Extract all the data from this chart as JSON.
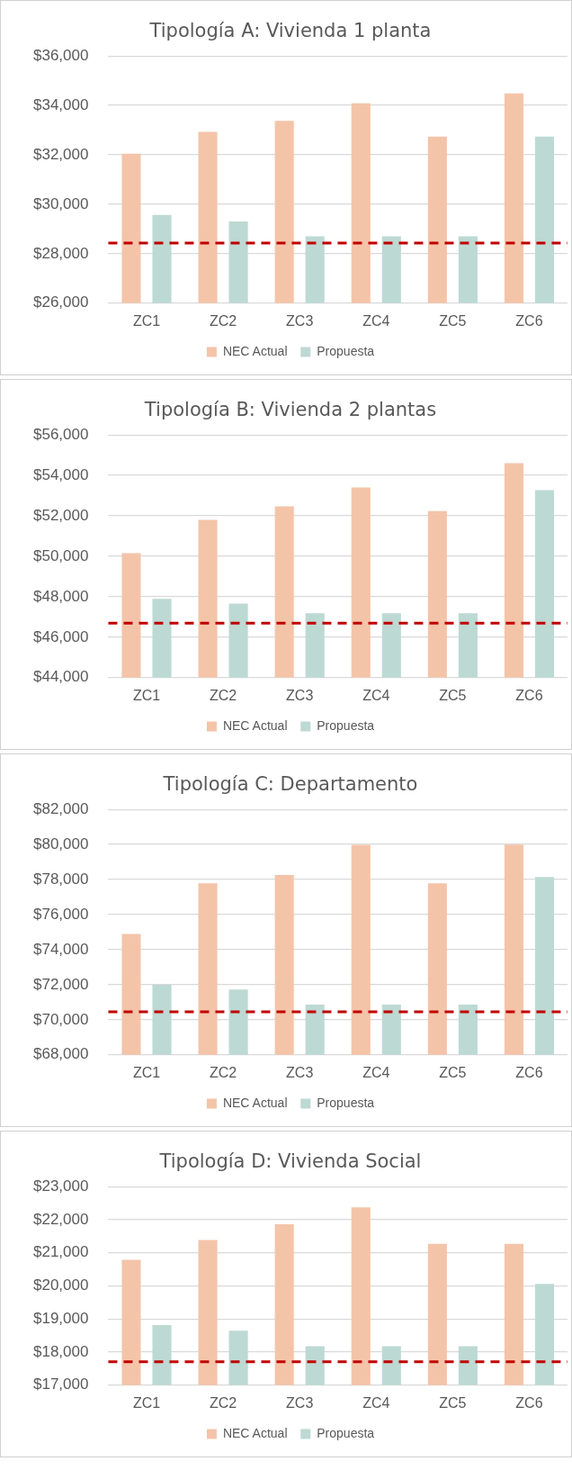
{
  "chart_data": [
    {
      "type": "bar",
      "title": "Tipología A: Vivienda 1 planta",
      "categories": [
        "ZC1",
        "ZC2",
        "ZC3",
        "ZC4",
        "ZC5",
        "ZC6"
      ],
      "series": [
        {
          "name": "NEC Actual",
          "color": "#f4c4a9",
          "values": [
            32050,
            32930,
            33380,
            34090,
            32740,
            34490
          ]
        },
        {
          "name": "Propuesta",
          "color": "#bdd9d3",
          "values": [
            29570,
            29310,
            28710,
            28710,
            28710,
            32740
          ]
        }
      ],
      "ylim": [
        26000,
        36000
      ],
      "yticks": [
        {
          "value": 26000,
          "label": "$26,000"
        },
        {
          "value": 28000,
          "label": "$28,000"
        },
        {
          "value": 30000,
          "label": "$30,000"
        },
        {
          "value": 32000,
          "label": "$32,000"
        },
        {
          "value": 34000,
          "label": "$34,000"
        },
        {
          "value": 36000,
          "label": "$36,000"
        }
      ],
      "grid": "y",
      "legend": "bottom",
      "ref_lines": [
        {
          "axis": "y",
          "value": 28430,
          "color": "#c00000",
          "line_style": "dashed"
        }
      ]
    },
    {
      "type": "bar",
      "title": "Tipología B: Vivienda 2 plantas",
      "categories": [
        "ZC1",
        "ZC2",
        "ZC3",
        "ZC4",
        "ZC5",
        "ZC6"
      ],
      "series": [
        {
          "name": "NEC Actual",
          "color": "#f4c4a9",
          "values": [
            50160,
            51800,
            52470,
            53410,
            52240,
            54610
          ]
        },
        {
          "name": "Propuesta",
          "color": "#bdd9d3",
          "values": [
            47900,
            47660,
            47180,
            47180,
            47180,
            53270
          ]
        }
      ],
      "ylim": [
        44000,
        56000
      ],
      "yticks": [
        {
          "value": 44000,
          "label": "$44,000"
        },
        {
          "value": 46000,
          "label": "$46,000"
        },
        {
          "value": 48000,
          "label": "$48,000"
        },
        {
          "value": 50000,
          "label": "$50,000"
        },
        {
          "value": 52000,
          "label": "$52,000"
        },
        {
          "value": 54000,
          "label": "$54,000"
        },
        {
          "value": 56000,
          "label": "$56,000"
        }
      ],
      "grid": "y",
      "legend": "bottom",
      "ref_lines": [
        {
          "axis": "y",
          "value": 46690,
          "color": "#c00000",
          "line_style": "dashed"
        }
      ]
    },
    {
      "type": "bar",
      "title": "Tipología C: Departamento",
      "categories": [
        "ZC1",
        "ZC2",
        "ZC3",
        "ZC4",
        "ZC5",
        "ZC6"
      ],
      "series": [
        {
          "name": "NEC Actual",
          "color": "#f4c4a9",
          "values": [
            74900,
            77790,
            78260,
            79980,
            77790,
            80000
          ]
        },
        {
          "name": "Propuesta",
          "color": "#bdd9d3",
          "values": [
            72000,
            71720,
            70870,
            70870,
            70870,
            78140
          ]
        }
      ],
      "ylim": [
        68000,
        82000
      ],
      "yticks": [
        {
          "value": 68000,
          "label": "$68,000"
        },
        {
          "value": 70000,
          "label": "$70,000"
        },
        {
          "value": 72000,
          "label": "$72,000"
        },
        {
          "value": 74000,
          "label": "$74,000"
        },
        {
          "value": 76000,
          "label": "$76,000"
        },
        {
          "value": 78000,
          "label": "$78,000"
        },
        {
          "value": 80000,
          "label": "$80,000"
        },
        {
          "value": 82000,
          "label": "$82,000"
        }
      ],
      "grid": "y",
      "legend": "bottom",
      "ref_lines": [
        {
          "axis": "y",
          "value": 70450,
          "color": "#c00000",
          "line_style": "dashed"
        }
      ]
    },
    {
      "type": "bar",
      "title": "Tipología D: Vivienda Social",
      "categories": [
        "ZC1",
        "ZC2",
        "ZC3",
        "ZC4",
        "ZC5",
        "ZC6"
      ],
      "series": [
        {
          "name": "NEC Actual",
          "color": "#f4c4a9",
          "values": [
            20790,
            21390,
            21860,
            22370,
            21270,
            21270
          ]
        },
        {
          "name": "Propuesta",
          "color": "#bdd9d3",
          "values": [
            18820,
            18650,
            18180,
            18180,
            18180,
            20060
          ]
        }
      ],
      "ylim": [
        17000,
        23000
      ],
      "yticks": [
        {
          "value": 17000,
          "label": "$17,000"
        },
        {
          "value": 18000,
          "label": "$18,000"
        },
        {
          "value": 19000,
          "label": "$19,000"
        },
        {
          "value": 20000,
          "label": "$20,000"
        },
        {
          "value": 21000,
          "label": "$21,000"
        },
        {
          "value": 22000,
          "label": "$22,000"
        },
        {
          "value": 23000,
          "label": "$23,000"
        }
      ],
      "grid": "y",
      "legend": "bottom",
      "ref_lines": [
        {
          "axis": "y",
          "value": 17710,
          "color": "#c00000",
          "line_style": "dashed"
        }
      ]
    }
  ]
}
